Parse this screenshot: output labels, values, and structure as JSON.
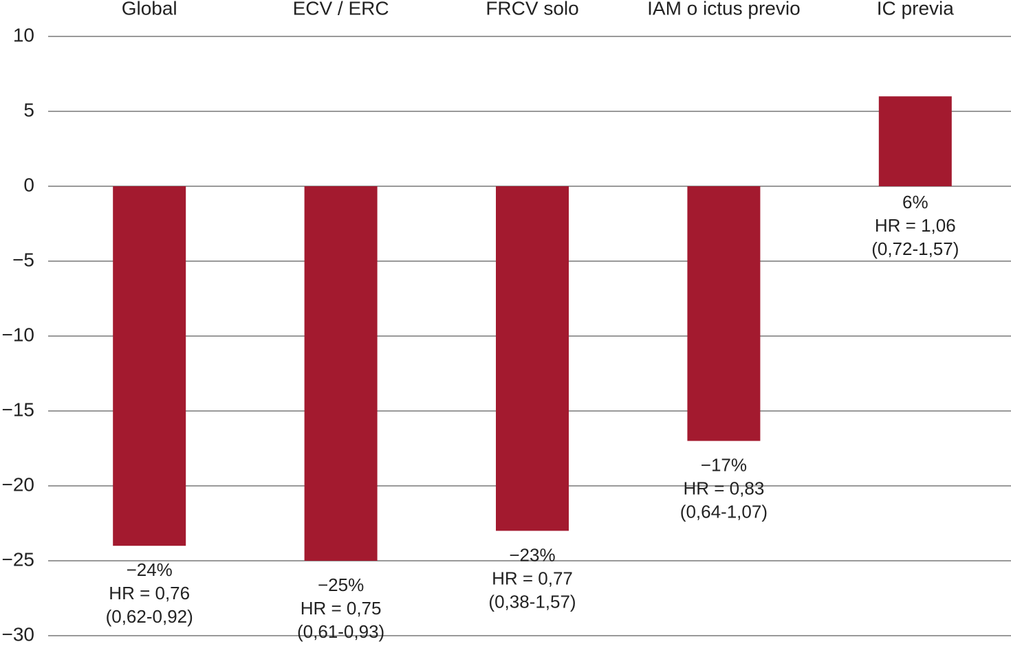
{
  "chart_data": {
    "type": "bar",
    "categories": [
      "Global",
      "ECV / ERC",
      "FRCV solo",
      "IAM o ictus previo",
      "IC previa"
    ],
    "values": [
      -24,
      -25,
      -23,
      -17,
      6
    ],
    "value_labels": [
      "−24%",
      "−25%",
      "−23%",
      "−17%",
      "6%"
    ],
    "hr_labels": [
      "HR = 0,76",
      "HR = 0,75",
      "HR = 0,77",
      "HR = 0,83",
      "HR = 1,06"
    ],
    "ci_labels": [
      "(0,62-0,92)",
      "(0,61-0,93)",
      "(0,38-1,57)",
      "(0,64-1,07)",
      "(0,72-1,57)"
    ],
    "color": "#a31a2f",
    "ylim": [
      -30,
      10
    ],
    "yticks": [
      {
        "value": -30,
        "label": "−30"
      },
      {
        "value": -25,
        "label": "−25"
      },
      {
        "value": -20,
        "label": "−20"
      },
      {
        "value": -15,
        "label": "−15"
      },
      {
        "value": -10,
        "label": "−10"
      },
      {
        "value": -5,
        "label": "−5"
      },
      0,
      5,
      10
    ],
    "grid": true
  }
}
